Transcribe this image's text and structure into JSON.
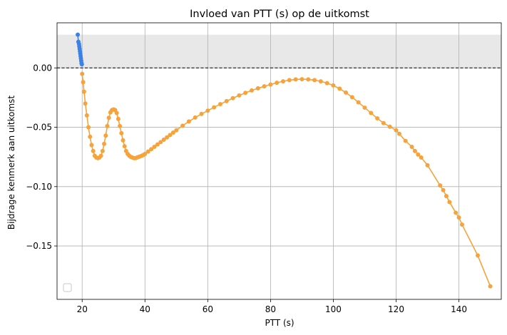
{
  "chart_data": {
    "type": "line",
    "title": "Invloed van PTT (s) op de uitkomst",
    "xlabel": "PTT (s)",
    "ylabel": "Bijdrage kenmerk aan uitkomst",
    "xlim": [
      12,
      153.5
    ],
    "ylim": [
      -0.195,
      0.038
    ],
    "xticks": [
      20,
      40,
      60,
      80,
      100,
      120,
      140
    ],
    "xtick_labels": [
      "20",
      "40",
      "60",
      "80",
      "100",
      "120",
      "140"
    ],
    "yticks": [
      0.0,
      -0.05,
      -0.1,
      -0.15
    ],
    "ytick_labels": [
      "0.00",
      "−0.05",
      "−0.10",
      "−0.15"
    ],
    "grid": true,
    "legend": "lower-left (empty)",
    "shaded_band": {
      "y_from": 0.0,
      "y_to": 0.028,
      "color": "#e8e8e8"
    },
    "reference_line": {
      "y": 0.0,
      "style": "dashed",
      "color": "#000000"
    },
    "series": [
      {
        "color": "#3b82e6",
        "x": [
          18.6,
          18.8,
          19.0,
          19.1,
          19.2,
          19.3,
          19.4,
          19.5,
          19.6,
          19.7,
          19.8,
          19.9
        ],
        "y": [
          0.028,
          0.022,
          0.02,
          0.018,
          0.016,
          0.014,
          0.012,
          0.01,
          0.008,
          0.006,
          0.004,
          0.003
        ]
      },
      {
        "color": "#f5a33a",
        "x": [
          20.0,
          20.3,
          20.6,
          21.0,
          21.5,
          22.0,
          22.5,
          23.0,
          23.5,
          24.0,
          24.5,
          25.0,
          25.5,
          26.0,
          26.5,
          27.0,
          27.5,
          28.0,
          28.5,
          29.0,
          29.5,
          30.0,
          30.5,
          31.0,
          31.5,
          32.0,
          32.5,
          33.0,
          33.5,
          34.0,
          34.5,
          35.0,
          35.5,
          36.0,
          36.5,
          37.0,
          37.5,
          38.0,
          38.5,
          39.0,
          39.5,
          40.0,
          41.0,
          42.0,
          43.0,
          44.0,
          45.0,
          46.0,
          47.0,
          48.0,
          49.0,
          50.0,
          52.0,
          54.0,
          56.0,
          58.0,
          60.0,
          62.0,
          64.0,
          66.0,
          68.0,
          70.0,
          72.0,
          74.0,
          76.0,
          78.0,
          80.0,
          82.0,
          84.0,
          86.0,
          88.0,
          90.0,
          92.0,
          94.0,
          96.0,
          98.0,
          100.0,
          102.0,
          104.0,
          106.0,
          108.0,
          110.0,
          112.0,
          114.0,
          116.0,
          118.0,
          120.0,
          121.0,
          123.0,
          125.0,
          126.0,
          127.0,
          128.0,
          130.0,
          134.0,
          135.0,
          136.0,
          137.0,
          139.0,
          140.0,
          141.0,
          146.0,
          150.0
        ],
        "y": [
          -0.005,
          -0.012,
          -0.02,
          -0.03,
          -0.04,
          -0.05,
          -0.058,
          -0.065,
          -0.07,
          -0.074,
          -0.0755,
          -0.076,
          -0.0755,
          -0.074,
          -0.07,
          -0.064,
          -0.057,
          -0.049,
          -0.042,
          -0.0375,
          -0.0355,
          -0.035,
          -0.0355,
          -0.038,
          -0.043,
          -0.049,
          -0.055,
          -0.061,
          -0.066,
          -0.07,
          -0.0725,
          -0.074,
          -0.075,
          -0.0755,
          -0.076,
          -0.076,
          -0.0755,
          -0.075,
          -0.0745,
          -0.074,
          -0.0733,
          -0.0725,
          -0.0705,
          -0.0685,
          -0.0665,
          -0.0645,
          -0.0625,
          -0.0605,
          -0.0585,
          -0.0565,
          -0.0545,
          -0.0525,
          -0.0487,
          -0.0451,
          -0.0418,
          -0.0388,
          -0.036,
          -0.0332,
          -0.0305,
          -0.028,
          -0.0255,
          -0.0232,
          -0.021,
          -0.019,
          -0.0172,
          -0.0155,
          -0.014,
          -0.0125,
          -0.0113,
          -0.0103,
          -0.0097,
          -0.0095,
          -0.0097,
          -0.0103,
          -0.0113,
          -0.0128,
          -0.0148,
          -0.0175,
          -0.0208,
          -0.0247,
          -0.029,
          -0.0335,
          -0.038,
          -0.0425,
          -0.0465,
          -0.0495,
          -0.0525,
          -0.0555,
          -0.0615,
          -0.0665,
          -0.07,
          -0.073,
          -0.0755,
          -0.082,
          -0.099,
          -0.103,
          -0.108,
          -0.113,
          -0.122,
          -0.126,
          -0.132,
          -0.158,
          -0.184
        ]
      }
    ]
  }
}
